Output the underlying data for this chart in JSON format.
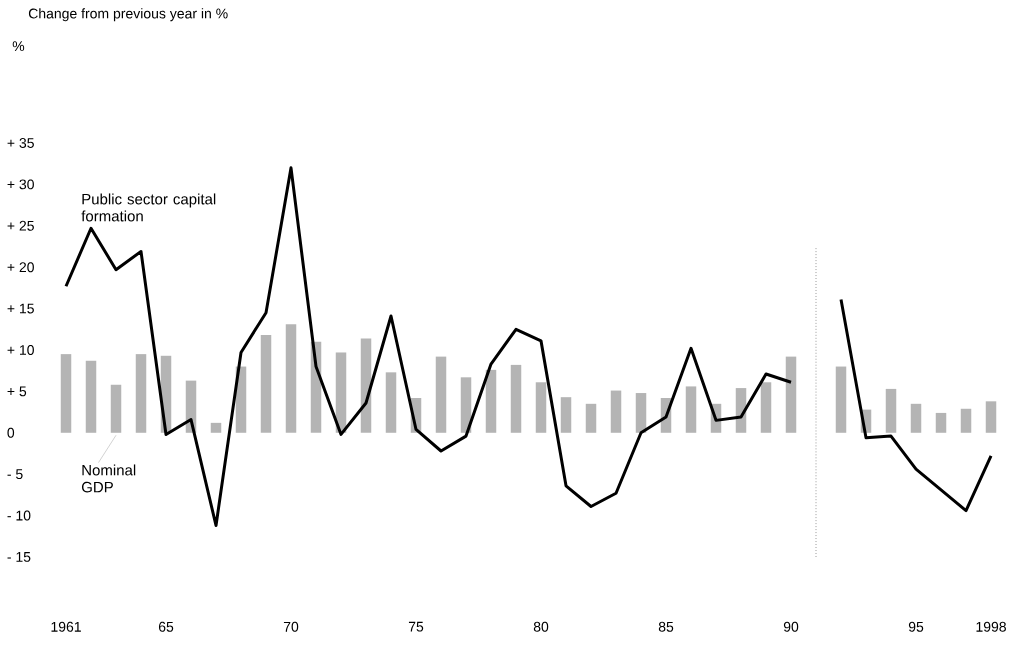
{
  "chart_data": {
    "type": "bar",
    "title": "Change from previous year in %",
    "annotations": [
      "%"
    ],
    "x": [
      1961,
      1962,
      1963,
      1964,
      1965,
      1966,
      1967,
      1968,
      1969,
      1970,
      1971,
      1972,
      1973,
      1974,
      1975,
      1976,
      1977,
      1978,
      1979,
      1980,
      1981,
      1982,
      1983,
      1984,
      1985,
      1986,
      1987,
      1988,
      1989,
      1990,
      1991,
      1992,
      1993,
      1994,
      1995,
      1996,
      1997,
      1998
    ],
    "series": [
      {
        "name": "Nominal GDP",
        "color": "#b4b4b4",
        "values": [
          9.5,
          8.7,
          5.8,
          9.5,
          9.3,
          6.3,
          1.2,
          8.0,
          11.8,
          13.1,
          11.0,
          9.7,
          11.4,
          7.3,
          4.2,
          9.2,
          6.7,
          7.6,
          8.2,
          6.1,
          4.3,
          3.5,
          5.1,
          4.8,
          4.2,
          5.6,
          3.5,
          5.4,
          6.1,
          9.2,
          null,
          8.0,
          2.8,
          5.3,
          3.5,
          2.4,
          2.9,
          3.8
        ]
      },
      {
        "name": "Public sector capital formation",
        "type": "line",
        "color": "#000000",
        "values": [
          17.7,
          24.7,
          19.7,
          21.9,
          -0.2,
          1.6,
          -11.2,
          9.7,
          14.5,
          32.0,
          8.0,
          -0.2,
          3.6,
          14.1,
          0.4,
          -2.2,
          -0.4,
          8.3,
          12.5,
          11.1,
          -6.4,
          -8.9,
          -7.3,
          0.0,
          1.9,
          10.2,
          1.5,
          1.9,
          7.1,
          6.1,
          null,
          16.1,
          -0.6,
          -0.4,
          -4.4,
          -6.9,
          -9.4,
          -2.8
        ]
      }
    ],
    "xlim": [
      1961,
      1998
    ],
    "xticks": [
      {
        "value": 1961,
        "label": "1961"
      },
      {
        "value": 1965,
        "label": "65"
      },
      {
        "value": 1970,
        "label": "70"
      },
      {
        "value": 1975,
        "label": "75"
      },
      {
        "value": 1980,
        "label": "80"
      },
      {
        "value": 1985,
        "label": "85"
      },
      {
        "value": 1990,
        "label": "90"
      },
      {
        "value": 1995,
        "label": "95"
      },
      {
        "value": 1998,
        "label": "1998"
      }
    ],
    "ylim": [
      -15,
      35
    ],
    "yticks": [
      {
        "value": 35,
        "label": "+ 35"
      },
      {
        "value": 30,
        "label": "+ 30"
      },
      {
        "value": 25,
        "label": "+ 25"
      },
      {
        "value": 20,
        "label": "+ 20"
      },
      {
        "value": 15,
        "label": "+ 15"
      },
      {
        "value": 10,
        "label": "+ 10"
      },
      {
        "value": 5,
        "label": "+ 5"
      },
      0,
      {
        "value": -5,
        "label": "- 5"
      },
      {
        "value": -10,
        "label": "- 10"
      },
      {
        "value": -15,
        "label": "- 15"
      }
    ],
    "ref_lines": [
      {
        "axis": "x",
        "value": 1991,
        "color": "#9a9a9a",
        "line_style": "dotted"
      }
    ],
    "marker": "none",
    "line_style": "solid",
    "grid": false,
    "legend": "left"
  }
}
